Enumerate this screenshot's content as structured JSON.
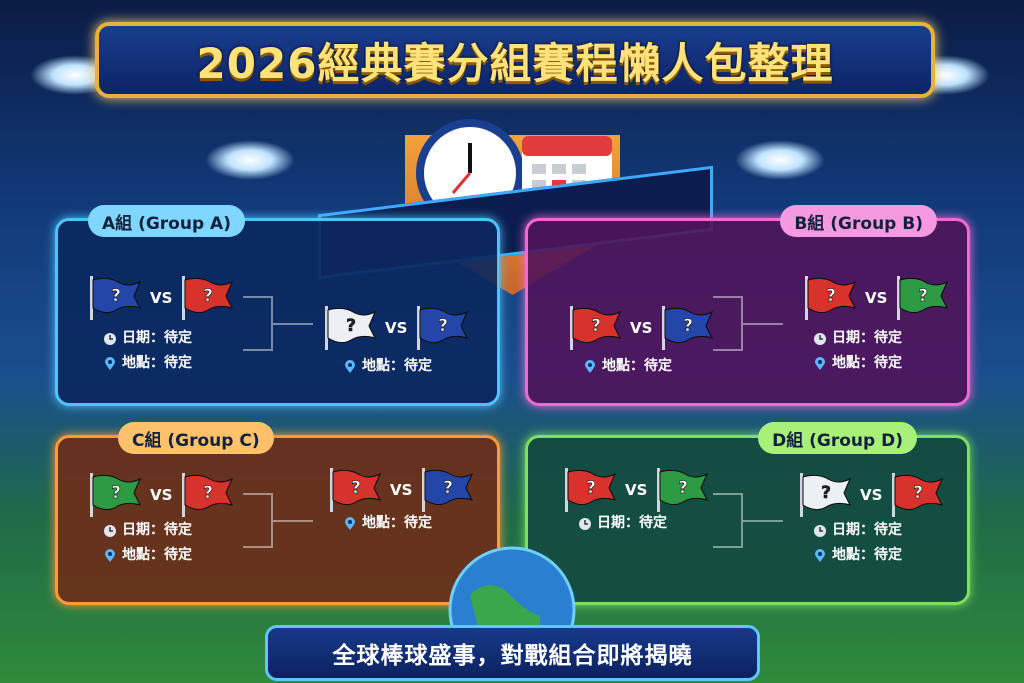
{
  "title": "2026經典賽分組賽程懶人包整理",
  "footer": "全球棒球盛事，對戰組合即將揭曉",
  "colors": {
    "blue": "#2446a8",
    "red": "#d8322c",
    "white": "#eceff3",
    "green": "#2e9a44"
  },
  "groups": [
    {
      "label": "A組 (Group A)",
      "matches": [
        {
          "home": "blue",
          "away": "red",
          "home_mark": "?",
          "away_mark": "?",
          "vs": "VS",
          "info": [
            {
              "icon": "clock-icon",
              "text": "日期：待定"
            },
            {
              "icon": "pin-icon",
              "text": "地點：待定"
            }
          ]
        },
        {
          "home": "white",
          "away": "blue",
          "home_mark": "?",
          "away_mark": "?",
          "vs": "VS",
          "info": [
            {
              "icon": "pin-icon",
              "text": "地點：待定"
            }
          ]
        }
      ]
    },
    {
      "label": "B組 (Group B)",
      "matches": [
        {
          "home": "red",
          "away": "blue",
          "home_mark": "?",
          "away_mark": "?",
          "vs": "VS",
          "info": [
            {
              "icon": "pin-icon",
              "text": "地點：待定"
            }
          ]
        },
        {
          "home": "red",
          "away": "green",
          "home_mark": "?",
          "away_mark": "?",
          "vs": "VS",
          "info": [
            {
              "icon": "clock-icon",
              "text": "日期：待定"
            },
            {
              "icon": "pin-icon",
              "text": "地點：待定"
            }
          ]
        }
      ]
    },
    {
      "label": "C組 (Group C)",
      "matches": [
        {
          "home": "green",
          "away": "red",
          "home_mark": "?",
          "away_mark": "?",
          "vs": "VS",
          "info": [
            {
              "icon": "clock-icon",
              "text": "日期：待定"
            },
            {
              "icon": "pin-icon",
              "text": "地點：待定"
            }
          ]
        },
        {
          "home": "red",
          "away": "blue",
          "home_mark": "?",
          "away_mark": "?",
          "vs": "VS",
          "info": [
            {
              "icon": "pin-icon",
              "text": "地點：待定"
            }
          ]
        }
      ]
    },
    {
      "label": "D組 (Group D)",
      "matches": [
        {
          "home": "red",
          "away": "green",
          "home_mark": "?",
          "away_mark": "?",
          "vs": "VS",
          "info": [
            {
              "icon": "clock-icon",
              "text": "日期：待定"
            }
          ]
        },
        {
          "home": "white",
          "away": "red",
          "home_mark": "?",
          "away_mark": "?",
          "vs": "VS",
          "info": [
            {
              "icon": "clock-icon",
              "text": "日期：待定"
            },
            {
              "icon": "pin-icon",
              "text": "地點：待定"
            }
          ]
        }
      ]
    }
  ]
}
